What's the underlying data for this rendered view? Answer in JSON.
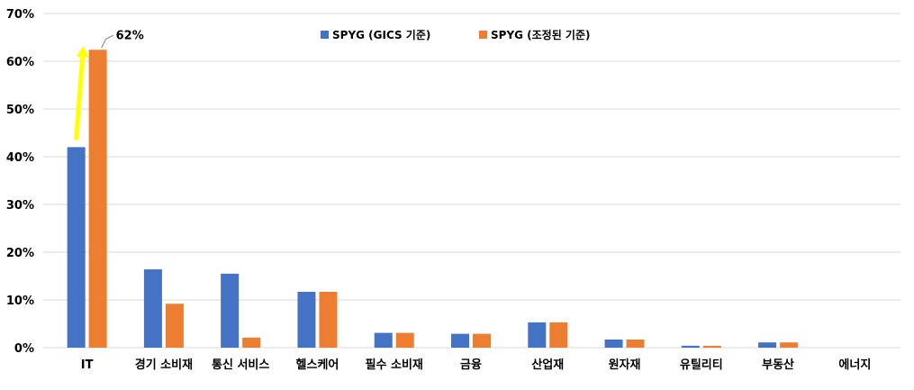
{
  "chart_data": {
    "type": "bar",
    "categories": [
      "IT",
      "경기 소비재",
      "통신 서비스",
      "헬스케어",
      "필수 소비재",
      "금융",
      "산업재",
      "원자재",
      "유틸리티",
      "부동산",
      "에너지"
    ],
    "series": [
      {
        "name": "SPYG (GICS 기준)",
        "color": "#4472C4",
        "values": [
          42.0,
          16.4,
          15.5,
          11.7,
          3.1,
          2.9,
          5.3,
          1.7,
          0.4,
          1.1,
          0.0
        ]
      },
      {
        "name": "SPYG (조정된 기준)",
        "color": "#ED7D31",
        "values": [
          62.4,
          9.2,
          2.1,
          11.7,
          3.1,
          2.9,
          5.3,
          1.7,
          0.4,
          1.1,
          0.0
        ]
      }
    ],
    "y_ticks": [
      "0%",
      "10%",
      "20%",
      "30%",
      "40%",
      "50%",
      "60%",
      "70%"
    ],
    "ylim": [
      0,
      70
    ],
    "grid": true,
    "legend_placement": "top-center",
    "annotation": {
      "text": "62%",
      "category": "IT",
      "from_value": 42.0,
      "to_value": 62.4,
      "arrow_color": "#FFFF00"
    }
  }
}
